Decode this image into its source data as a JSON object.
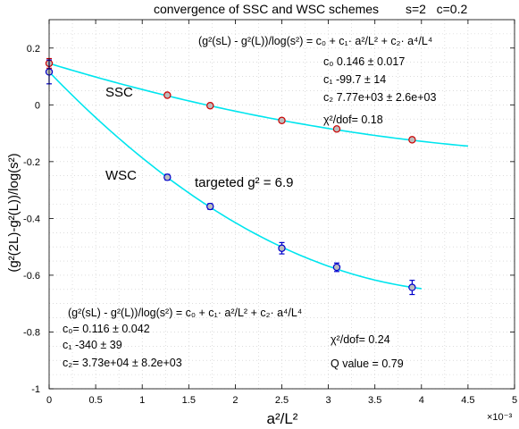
{
  "chart_data": {
    "type": "scatter",
    "title": "convergence of SSC and WSC schemes",
    "params": "s=2   c=0.2",
    "xlabel": "a²/L²",
    "ylabel": "(g²(2L)-g²(L))/log(s²)",
    "x_exponent_label": "×10⁻³",
    "xlim": [
      0,
      5
    ],
    "ylim": [
      -1,
      0.3
    ],
    "grid": true,
    "x_ticks": [
      "0",
      "0.5",
      "1",
      "1.5",
      "2",
      "2.5",
      "3",
      "3.5",
      "4",
      "4.5",
      "5"
    ],
    "y_ticks": [
      "-1",
      "-0.8",
      "-0.6",
      "-0.4",
      "-0.2",
      "0",
      "0.2"
    ],
    "series": [
      {
        "name": "SSC",
        "color": "#cc0000",
        "x": [
          0,
          1.27,
          1.73,
          2.5,
          3.09,
          3.9
        ],
        "y": [
          0.146,
          0.034,
          -0.003,
          -0.055,
          -0.085,
          -0.123
        ],
        "err": [
          0.017,
          0.006,
          0.005,
          0.005,
          0.005,
          0.005
        ],
        "fit": {
          "c0": 0.146,
          "c1": -99.7,
          "c2": 7770,
          "x_end": 4.5
        }
      },
      {
        "name": "WSC",
        "color": "#0000cc",
        "x": [
          0,
          1.27,
          1.73,
          2.5,
          3.09,
          3.9
        ],
        "y": [
          0.116,
          -0.255,
          -0.358,
          -0.505,
          -0.572,
          -0.643
        ],
        "err": [
          0.042,
          0.01,
          0.01,
          0.02,
          0.015,
          0.025
        ],
        "fit": {
          "c0": 0.116,
          "c1": -340,
          "c2": 37300,
          "x_end": 4.0
        }
      }
    ],
    "fit_color": "#00e5ee",
    "annotations": {
      "targeted": "targeted g² = 6.9",
      "ssc_formula": "(g²(sL) - g²(L))/log(s²) = c₀ + c₁· a²/L² + c₂· a⁴/L⁴",
      "ssc_c0": "c₀ 0.146 ± 0.017",
      "ssc_c1": "c₁ -99.7 ± 14",
      "ssc_c2": "c₂ 7.77e+03 ± 2.6e+03",
      "ssc_chi": "χ²/dof= 0.18",
      "wsc_formula": "(g²(sL) - g²(L))/log(s²) = c₀ + c₁· a²/L² + c₂· a⁴/L⁴",
      "wsc_c0": "c₀= 0.116 ± 0.042",
      "wsc_c1": "c₁ -340 ± 39",
      "wsc_c2": "c₂= 3.73e+04 ± 8.2e+03",
      "wsc_chi": "χ²/dof= 0.24",
      "wsc_q": "Q value = 0.79"
    }
  }
}
